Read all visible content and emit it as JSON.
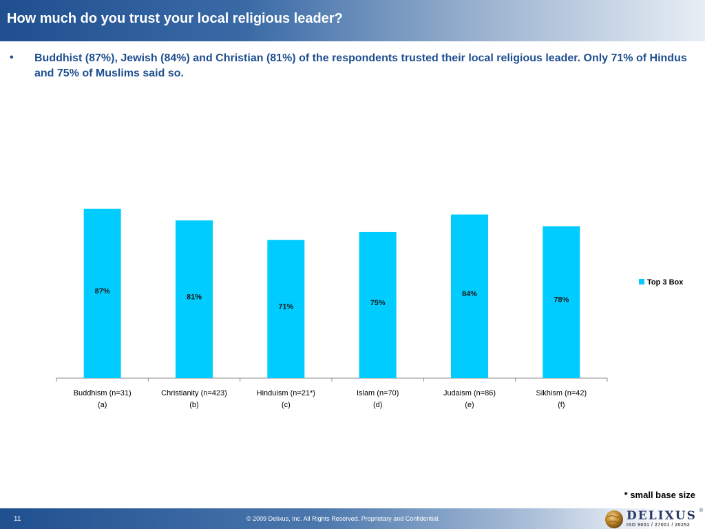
{
  "header": {
    "title": "How much do you trust your local religious leader?"
  },
  "summary": {
    "bullet": "•",
    "text": "Buddhist (87%), Jewish (84%) and Christian (81%) of the respondents trusted their local religious leader.  Only 71% of Hindus and 75% of Muslims said so."
  },
  "chart_data": {
    "type": "bar",
    "categories": [
      "Buddhism (n=31)",
      "Christianity (n=423)",
      "Hinduism (n=21*)",
      "Islam (n=70)",
      "Judaism (n=86)",
      "Sikhism (n=42)"
    ],
    "category_codes": [
      "(a)",
      "(b)",
      "(c)",
      "(d)",
      "(e)",
      "(f)"
    ],
    "series": [
      {
        "name": "Top 3 Box",
        "values": [
          87,
          81,
          71,
          75,
          84,
          78
        ],
        "labels": [
          "87%",
          "81%",
          "71%",
          "75%",
          "84%",
          "78%"
        ],
        "color": "#00ccff"
      }
    ],
    "ylim": [
      0,
      87
    ],
    "grid": false,
    "legend_position": "right"
  },
  "footnote": "* small base size",
  "footer": {
    "page_number": "11",
    "copyright": "© 2009 Delixus, Inc. All Rights Reserved. Proprietary and Confidential.",
    "logo_name": "DELIXUS",
    "logo_tagline": "ISO 9001 / 27001 / 20252",
    "logo_registered": "®"
  }
}
